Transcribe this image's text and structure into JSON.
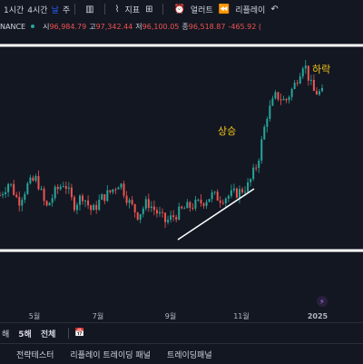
{
  "toolbar": {
    "intervals": [
      "1시간",
      "4시간",
      "날",
      "주"
    ],
    "active_interval": 2,
    "indicators_label": "지표",
    "alerts_label": "얼러트",
    "replay_label": "리플레이"
  },
  "legend": {
    "symbol": "NANCE",
    "open_key": "시",
    "open": "96,984.79",
    "high_key": "고",
    "high": "97,342.44",
    "low_key": "저",
    "low": "96,100.05",
    "close_key": "종",
    "close": "96,518.87",
    "change": "-465.92 ("
  },
  "annotations": {
    "rise_label": "상승",
    "fall_label": "하락"
  },
  "colors": {
    "up": "#26a69a",
    "down": "#ef5350",
    "annotation": "#f5c518",
    "lines": "#ffffff",
    "background": "#131722"
  },
  "chart_data": {
    "type": "candlestick",
    "x_tick_labels": [
      "5월",
      "7월",
      "9월",
      "11월",
      "2025"
    ],
    "y_range": [
      50000,
      110000
    ],
    "trend": [
      {
        "t": 0,
        "v": 66000
      },
      {
        "t": 10,
        "v": 70000
      },
      {
        "t": 20,
        "v": 64000
      },
      {
        "t": 30,
        "v": 69000
      },
      {
        "t": 40,
        "v": 71000
      },
      {
        "t": 50,
        "v": 62000
      },
      {
        "t": 60,
        "v": 67000
      },
      {
        "t": 70,
        "v": 70000
      },
      {
        "t": 80,
        "v": 63000
      },
      {
        "t": 90,
        "v": 66000
      },
      {
        "t": 100,
        "v": 61000
      },
      {
        "t": 110,
        "v": 65000
      },
      {
        "t": 120,
        "v": 67000
      },
      {
        "t": 130,
        "v": 70000
      },
      {
        "t": 140,
        "v": 64000
      },
      {
        "t": 150,
        "v": 60000
      },
      {
        "t": 160,
        "v": 64000
      },
      {
        "t": 170,
        "v": 61000
      },
      {
        "t": 180,
        "v": 58000
      },
      {
        "t": 190,
        "v": 60000
      },
      {
        "t": 200,
        "v": 62000
      },
      {
        "t": 210,
        "v": 63000
      },
      {
        "t": 220,
        "v": 64000
      },
      {
        "t": 230,
        "v": 66000
      },
      {
        "t": 240,
        "v": 65000
      },
      {
        "t": 250,
        "v": 66000
      },
      {
        "t": 260,
        "v": 67000
      },
      {
        "t": 270,
        "v": 69000
      },
      {
        "t": 280,
        "v": 76000
      },
      {
        "t": 290,
        "v": 90000
      },
      {
        "t": 300,
        "v": 96000
      },
      {
        "t": 310,
        "v": 94000
      },
      {
        "t": 320,
        "v": 99000
      },
      {
        "t": 330,
        "v": 106000
      },
      {
        "t": 340,
        "v": 97000
      },
      {
        "t": 350,
        "v": 96500
      }
    ]
  },
  "bottom": {
    "ranges": [
      "해",
      "5해",
      "전체"
    ]
  },
  "panel_tabs": [
    "전략테스터",
    "리플레이 트레이딩 패널",
    "트레이딩패널"
  ]
}
